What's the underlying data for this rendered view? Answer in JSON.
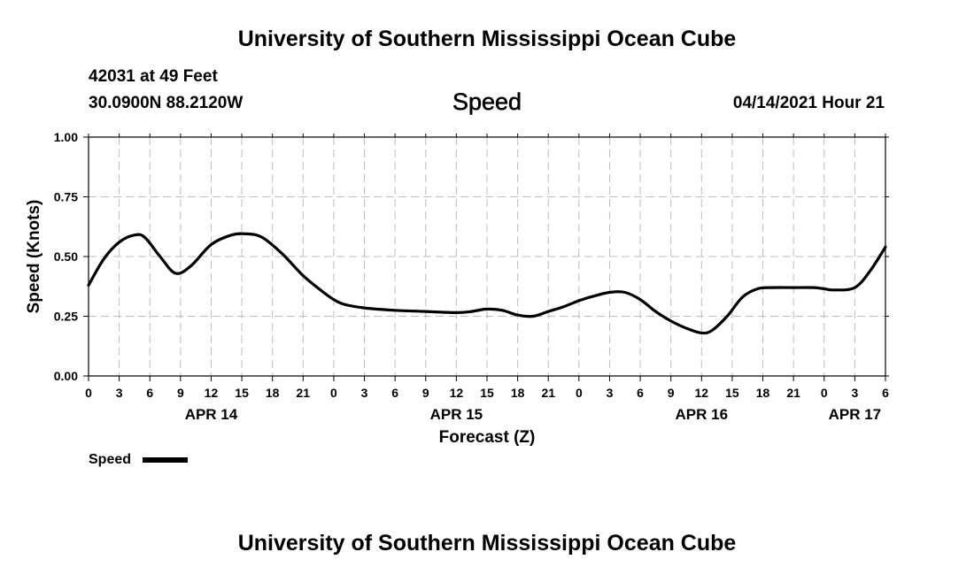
{
  "header": {
    "title": "University of Southern Mississippi Ocean Cube",
    "station": "42031 at 49 Feet",
    "coords": "30.0900N  88.2120W",
    "variable": "Speed",
    "datetime": "04/14/2021 Hour 21"
  },
  "footer": {
    "title": "University of Southern Mississippi Ocean Cube"
  },
  "legend": {
    "label": "Speed"
  },
  "chart_data": {
    "type": "line",
    "title": "Speed",
    "xlabel": "Forecast (Z)",
    "ylabel": "Speed (Knots)",
    "ylim": [
      0,
      1
    ],
    "xlim": [
      0,
      78
    ],
    "grid": true,
    "legend_position": "bottom-left",
    "y_ticks": [
      0,
      0.25,
      0.5,
      0.75,
      1.0
    ],
    "y_tick_labels": [
      "0.00",
      "0.25",
      "0.50",
      "0.75",
      "1.00"
    ],
    "x_ticks": [
      0,
      3,
      6,
      9,
      12,
      15,
      18,
      21,
      24,
      27,
      30,
      33,
      36,
      39,
      42,
      45,
      48,
      51,
      54,
      57,
      60,
      63,
      66,
      69,
      72,
      75,
      78
    ],
    "x_tick_labels": [
      "0",
      "3",
      "6",
      "9",
      "12",
      "15",
      "18",
      "21",
      "0",
      "3",
      "6",
      "9",
      "12",
      "15",
      "18",
      "21",
      "0",
      "3",
      "6",
      "9",
      "12",
      "15",
      "18",
      "21",
      "0",
      "3",
      "6"
    ],
    "date_labels": [
      {
        "x": 12,
        "label": "APR 14"
      },
      {
        "x": 36,
        "label": "APR 15"
      },
      {
        "x": 60,
        "label": "APR 16"
      },
      {
        "x": 75,
        "label": "APR 17"
      }
    ],
    "series": [
      {
        "name": "Speed",
        "color": "#000000",
        "x": [
          0,
          1.5,
          3,
          4.5,
          5.5,
          7,
          8.5,
          10,
          12,
          14,
          15.5,
          17,
          19,
          21,
          23,
          24,
          25,
          27,
          30,
          33,
          36,
          37.5,
          39,
          40.5,
          42,
          43.5,
          45,
          46.5,
          48,
          49.5,
          51,
          52.5,
          54,
          55.5,
          57,
          58.5,
          60,
          61,
          62.5,
          64,
          65.5,
          67,
          69,
          71,
          72,
          73,
          75,
          76.5,
          78
        ],
        "values": [
          0.38,
          0.49,
          0.56,
          0.59,
          0.58,
          0.5,
          0.43,
          0.46,
          0.55,
          0.59,
          0.595,
          0.58,
          0.51,
          0.42,
          0.35,
          0.32,
          0.3,
          0.285,
          0.275,
          0.27,
          0.265,
          0.27,
          0.28,
          0.275,
          0.255,
          0.25,
          0.27,
          0.29,
          0.315,
          0.335,
          0.35,
          0.35,
          0.32,
          0.27,
          0.23,
          0.2,
          0.18,
          0.19,
          0.25,
          0.33,
          0.365,
          0.37,
          0.37,
          0.37,
          0.365,
          0.36,
          0.37,
          0.44,
          0.54
        ]
      }
    ]
  }
}
